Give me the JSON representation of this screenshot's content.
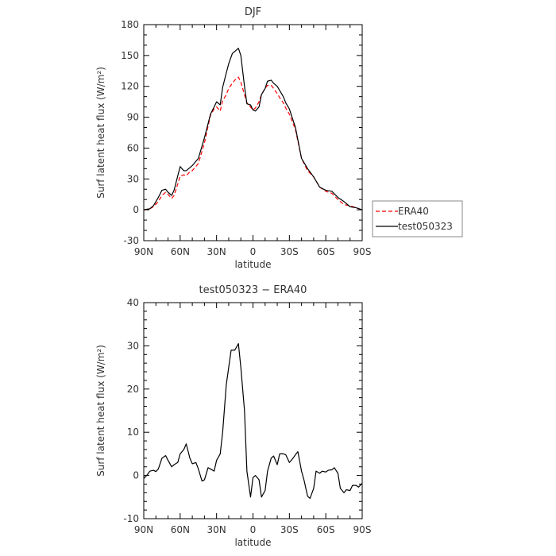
{
  "chart_data": [
    {
      "type": "line",
      "title": "DJF",
      "xlabel": "latitude",
      "ylabel": "Surf latent heat flux (W/m²)",
      "ylim": [
        -30,
        180
      ],
      "yticks": [
        -30,
        0,
        30,
        60,
        90,
        120,
        150,
        180
      ],
      "xlim": [
        90,
        -90
      ],
      "xticks": [
        90,
        60,
        30,
        0,
        -30,
        -60,
        -90
      ],
      "xtick_labels": [
        "90N",
        "60N",
        "30N",
        "0",
        "30S",
        "60S",
        "90S"
      ],
      "legend": {
        "position": "right",
        "entries": [
          "ERA40",
          "test050323"
        ]
      },
      "series": [
        {
          "name": "ERA40",
          "color": "#ff0000",
          "style": "dashed",
          "x": [
            90,
            85,
            82,
            78,
            75,
            72,
            70,
            67,
            65,
            62,
            60,
            57,
            55,
            52,
            50,
            45,
            40,
            35,
            32,
            30,
            27,
            25,
            22,
            20,
            17,
            15,
            12,
            10,
            7,
            5,
            2,
            0,
            -2,
            -5,
            -7,
            -10,
            -12,
            -15,
            -17,
            -20,
            -22,
            -25,
            -27,
            -30,
            -35,
            -40,
            -45,
            -50,
            -55,
            -60,
            -65,
            -70,
            -75,
            -80,
            -85,
            -90
          ],
          "y": [
            0,
            1,
            3,
            8,
            14,
            17,
            15,
            11,
            14,
            25,
            33,
            34,
            33,
            37,
            38,
            45,
            65,
            92,
            98,
            100,
            96,
            106,
            112,
            118,
            123,
            126,
            129,
            124,
            112,
            104,
            100,
            97,
            99,
            105,
            112,
            118,
            121,
            121,
            118,
            113,
            109,
            104,
            99,
            93,
            78,
            50,
            38,
            32,
            22,
            18,
            16,
            10,
            5,
            4,
            2,
            0
          ]
        },
        {
          "name": "test050323",
          "color": "#000000",
          "style": "solid",
          "x": [
            90,
            85,
            82,
            78,
            75,
            72,
            70,
            67,
            65,
            62,
            60,
            57,
            55,
            52,
            50,
            45,
            40,
            35,
            32,
            30,
            27,
            25,
            22,
            20,
            17,
            15,
            12,
            10,
            7,
            5,
            2,
            0,
            -2,
            -5,
            -7,
            -10,
            -12,
            -15,
            -17,
            -20,
            -22,
            -25,
            -27,
            -30,
            -35,
            -40,
            -45,
            -50,
            -55,
            -60,
            -65,
            -70,
            -75,
            -80,
            -85,
            -90
          ],
          "y": [
            0,
            1,
            4,
            12,
            19,
            20,
            17,
            14,
            19,
            33,
            42,
            38,
            38,
            41,
            43,
            50,
            70,
            93,
            100,
            105,
            102,
            119,
            133,
            142,
            152,
            154,
            157,
            150,
            120,
            103,
            102,
            97,
            96,
            100,
            112,
            118,
            125,
            126,
            123,
            120,
            116,
            110,
            104,
            98,
            80,
            50,
            40,
            32,
            22,
            19,
            18,
            12,
            8,
            3,
            2,
            0
          ]
        }
      ]
    },
    {
      "type": "line",
      "title": "test050323 − ERA40",
      "xlabel": "latitude",
      "ylabel": "Surf latent heat flux (W/m²)",
      "ylim": [
        -10,
        40
      ],
      "yticks": [
        -10,
        0,
        10,
        20,
        30,
        40
      ],
      "xlim": [
        90,
        -90
      ],
      "xticks": [
        90,
        60,
        30,
        0,
        -30,
        -60,
        -90
      ],
      "xtick_labels": [
        "90N",
        "60N",
        "30N",
        "0",
        "30S",
        "60S",
        "90S"
      ],
      "series": [
        {
          "color": "#000000",
          "style": "solid",
          "x": [
            90,
            87,
            85,
            82,
            80,
            78,
            75,
            72,
            70,
            67,
            65,
            62,
            60,
            57,
            55,
            52,
            50,
            47,
            45,
            42,
            40,
            37,
            35,
            32,
            30,
            27,
            25,
            22,
            20,
            18,
            15,
            12,
            10,
            7,
            5,
            2,
            0,
            -2,
            -5,
            -7,
            -10,
            -12,
            -15,
            -17,
            -20,
            -22,
            -25,
            -27,
            -30,
            -33,
            -35,
            -37,
            -40,
            -42,
            -45,
            -47,
            -50,
            -52,
            -55,
            -57,
            -60,
            -62,
            -65,
            -67,
            -70,
            -72,
            -75,
            -77,
            -80,
            -82,
            -85,
            -87,
            -90
          ],
          "y": [
            -0.7,
            0.2,
            1,
            1.2,
            0.9,
            1.5,
            4,
            4.6,
            3.5,
            2,
            2.5,
            3,
            5,
            6,
            7.3,
            4,
            2.7,
            3,
            1.5,
            -1.3,
            -1,
            1.8,
            1.5,
            1,
            3.5,
            5,
            10,
            21,
            25,
            29,
            29,
            30.5,
            25,
            15,
            1,
            -5,
            -0.5,
            0,
            -1,
            -5,
            -3.5,
            1,
            4,
            4.5,
            2.5,
            5,
            5,
            4.8,
            3,
            4,
            4.8,
            5.5,
            1,
            -1,
            -4.8,
            -5.3,
            -3,
            1,
            0.5,
            1,
            0.8,
            1.2,
            1.3,
            1.8,
            0.5,
            -3,
            -4,
            -3.3,
            -3.5,
            -2.3,
            -2.3,
            -2.7,
            -1.8
          ]
        }
      ]
    }
  ]
}
